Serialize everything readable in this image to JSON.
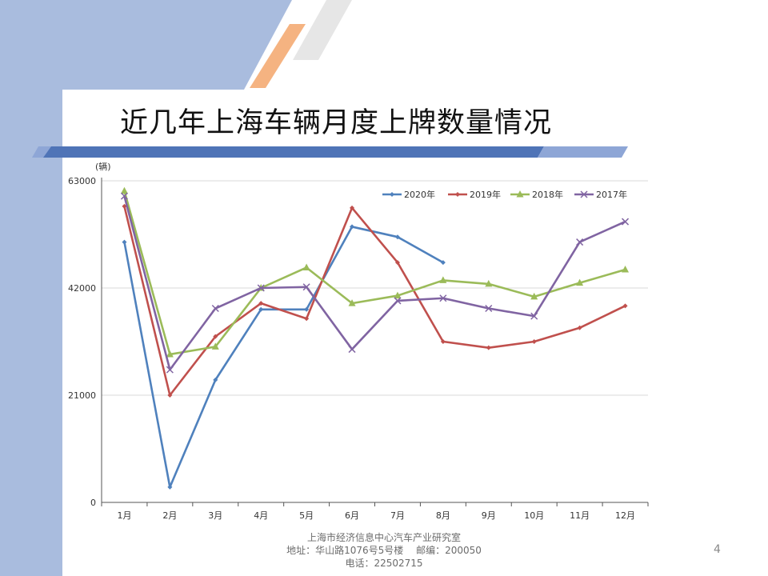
{
  "slide": {
    "title": "近几年上海车辆月度上牌数量情况",
    "page_number": "4",
    "footer": {
      "line1": "上海市经济信息中心汽车产业研究室",
      "line2": "地址：华山路1076号5号楼　 邮编：200050",
      "line3": "电话：22502715"
    },
    "colors": {
      "side_band": "#a9bcde",
      "stripe_orange": "#f5b381",
      "stripe_gray": "#e6e6e6",
      "rule_blue": "#4f74b7",
      "rule_light": "#8ea6d6"
    }
  },
  "chart_data": {
    "type": "line",
    "title": "",
    "ylabel": "(辆)",
    "xlabel": "",
    "categories": [
      "1月",
      "2月",
      "3月",
      "4月",
      "5月",
      "6月",
      "7月",
      "8月",
      "9月",
      "10月",
      "11月",
      "12月"
    ],
    "ylim": [
      0,
      63000
    ],
    "yticks": [
      0,
      21000,
      42000,
      63000
    ],
    "grid": true,
    "legend_position": "top-right",
    "series": [
      {
        "name": "2020年",
        "color": "#4f81bd",
        "marker": "diamond",
        "values": [
          51000,
          3000,
          24000,
          37800,
          37800,
          54000,
          52000,
          47000,
          null,
          null,
          null,
          null
        ]
      },
      {
        "name": "2019年",
        "color": "#c0504d",
        "marker": "diamond",
        "values": [
          58000,
          21000,
          32500,
          39000,
          36000,
          57700,
          47000,
          31500,
          30300,
          31500,
          34200,
          38500
        ]
      },
      {
        "name": "2018年",
        "color": "#9bbb59",
        "marker": "triangle",
        "values": [
          61000,
          29000,
          30500,
          42000,
          46000,
          39000,
          40500,
          43500,
          42800,
          40300,
          43000,
          45600
        ]
      },
      {
        "name": "2017年",
        "color": "#8064a2",
        "marker": "x",
        "values": [
          60000,
          26000,
          38000,
          42000,
          42200,
          30000,
          39500,
          40000,
          38000,
          36500,
          51000,
          55000
        ]
      }
    ]
  }
}
